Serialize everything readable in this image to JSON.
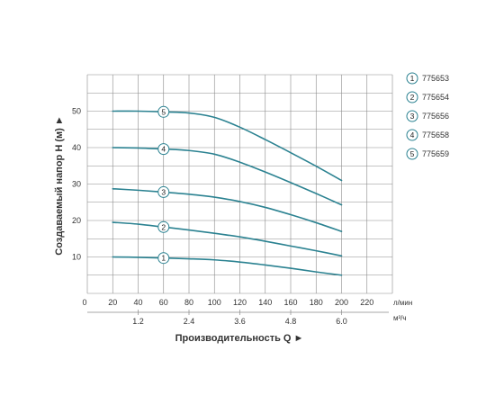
{
  "chart_data": {
    "type": "line",
    "xlabel": "Производительность Q ►",
    "ylabel": "Создаваемый напор H (м) ►",
    "x_unit": "л/мин",
    "x2_unit": "м³/ч",
    "xlim": [
      0,
      240
    ],
    "ylim": [
      0,
      60
    ],
    "x_ticks": [
      0,
      20,
      40,
      60,
      80,
      100,
      120,
      140,
      160,
      180,
      200,
      220
    ],
    "y_ticks": [
      10,
      20,
      30,
      40,
      50
    ],
    "x2_ticks": [
      "1.2",
      "2.4",
      "3.6",
      "4.8",
      "6.0"
    ],
    "grid": true,
    "legend": "right",
    "x": [
      20,
      40,
      60,
      80,
      100,
      120,
      140,
      160,
      180,
      200
    ],
    "series": [
      {
        "name": "775653",
        "marker_label": "1",
        "values": [
          10.0,
          9.9,
          9.7,
          9.5,
          9.2,
          8.6,
          7.8,
          6.9,
          5.9,
          5.0
        ]
      },
      {
        "name": "775654",
        "marker_label": "2",
        "values": [
          19.5,
          19.0,
          18.2,
          17.4,
          16.5,
          15.5,
          14.3,
          13.0,
          11.7,
          10.3
        ]
      },
      {
        "name": "775656",
        "marker_label": "3",
        "values": [
          28.7,
          28.3,
          27.8,
          27.2,
          26.4,
          25.2,
          23.6,
          21.6,
          19.4,
          17.0
        ]
      },
      {
        "name": "775658",
        "marker_label": "4",
        "values": [
          40.0,
          39.9,
          39.6,
          39.2,
          38.2,
          36.0,
          33.3,
          30.4,
          27.4,
          24.3
        ]
      },
      {
        "name": "775659",
        "marker_label": "5",
        "values": [
          50.0,
          50.0,
          49.8,
          49.5,
          48.3,
          45.6,
          42.2,
          38.6,
          34.9,
          31.0
        ]
      }
    ],
    "colors": {
      "curve": "#2b8291",
      "grid": "#8a8a8a",
      "text": "#333333",
      "marker_fill": "#ffffff"
    }
  }
}
